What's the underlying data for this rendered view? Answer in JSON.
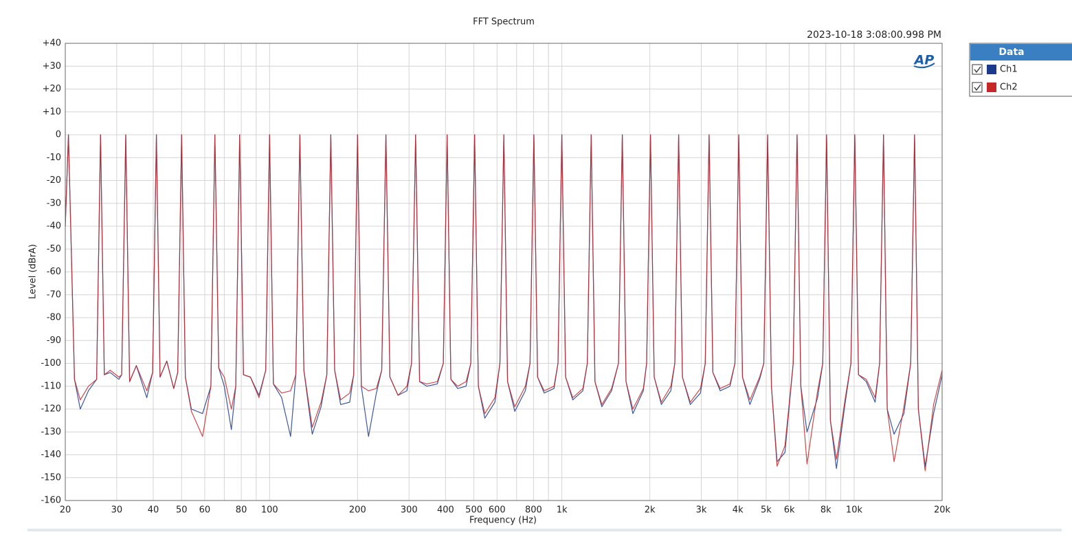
{
  "chart_data": {
    "type": "line",
    "title": "FFT Spectrum",
    "subtitle": "2023-10-18 3:08:00.998 PM",
    "logo": "AP",
    "legend_title": "Data",
    "xlabel": "Frequency (Hz)",
    "ylabel": "Level (dBrA)",
    "xscale": "log",
    "grid": true,
    "legend": "right",
    "xlim": [
      20,
      20000
    ],
    "ylim": [
      -160,
      40
    ],
    "xticks": [
      20,
      30,
      40,
      50,
      60,
      80,
      100,
      200,
      300,
      400,
      500,
      600,
      800,
      {
        "value": 1000,
        "label": "1k"
      },
      {
        "value": 2000,
        "label": "2k"
      },
      {
        "value": 3000,
        "label": "3k"
      },
      {
        "value": 4000,
        "label": "4k"
      },
      {
        "value": 5000,
        "label": "5k"
      },
      {
        "value": 6000,
        "label": "6k"
      },
      {
        "value": 8000,
        "label": "8k"
      },
      {
        "value": 10000,
        "label": "10k"
      },
      {
        "value": 20000,
        "label": "20k"
      }
    ],
    "xgrid_minor": [
      70,
      90,
      700,
      900,
      7000,
      9000
    ],
    "yticks": [
      {
        "value": 40,
        "label": "+40"
      },
      {
        "value": 30,
        "label": "+30"
      },
      {
        "value": 20,
        "label": "+20"
      },
      {
        "value": 10,
        "label": "+10"
      },
      0,
      -10,
      -20,
      -30,
      -40,
      -50,
      -60,
      -70,
      -80,
      -90,
      -100,
      -110,
      -120,
      -130,
      -140,
      -150,
      -160
    ],
    "x": [
      20,
      20.5,
      21.5,
      22.5,
      24,
      25.6,
      26.4,
      27.2,
      28.5,
      30.5,
      31.2,
      32.2,
      33.2,
      35,
      38,
      39.8,
      41,
      42.2,
      44.5,
      47,
      48.5,
      50,
      51.5,
      54,
      59,
      63,
      65,
      67,
      70,
      74,
      76.6,
      79,
      81.4,
      86,
      92,
      97,
      100,
      103,
      110,
      118,
      123,
      127,
      131,
      140,
      150,
      157,
      162,
      167,
      175,
      188,
      194,
      200,
      206,
      218,
      232,
      242,
      250,
      258,
      275,
      295,
      306,
      316,
      326,
      345,
      375,
      393,
      405,
      417,
      440,
      470,
      488,
      503,
      518,
      545,
      590,
      614,
      633,
      652,
      690,
      750,
      778,
      802,
      826,
      870,
      940,
      970,
      1000,
      1030,
      1090,
      1180,
      1222,
      1260,
      1298,
      1370,
      1480,
      1562,
      1610,
      1658,
      1750,
      1900,
      1950,
      2010,
      2070,
      2190,
      2360,
      2435,
      2510,
      2585,
      2750,
      2980,
      3094,
      3190,
      3286,
      3480,
      3760,
      3909,
      4030,
      4151,
      4400,
      4750,
      4908,
      5060,
      5212,
      5450,
      5800,
      6189,
      6380,
      6571,
      6900,
      7500,
      7809,
      8050,
      8292,
      8700,
      9300,
      9749,
      10050,
      10350,
      11000,
      11800,
      12220,
      12600,
      12980,
      13700,
      14800,
      15620,
      16100,
      16580,
      17500,
      18700,
      20000
    ],
    "series": [
      {
        "name": "Ch1",
        "color": "#1b3a8c",
        "values": [
          -40,
          0,
          -107,
          -120,
          -112,
          -107,
          0,
          -105,
          -104,
          -107,
          -105,
          0,
          -108,
          -101,
          -115,
          -104,
          0,
          -106,
          -99,
          -111,
          -104,
          0,
          -106,
          -120,
          -122,
          -110,
          0,
          -102,
          -110,
          -129,
          -110,
          0,
          -105,
          -106,
          -114,
          -103,
          0,
          -109,
          -115,
          -132,
          -105,
          0,
          -103,
          -131,
          -119,
          -105,
          0,
          -103,
          -118,
          -117,
          -105,
          0,
          -110,
          -132,
          -113,
          -103,
          0,
          -106,
          -114,
          -112,
          -100,
          0,
          -108,
          -110,
          -109,
          -100,
          0,
          -107,
          -111,
          -110,
          -100,
          0,
          -110,
          -124,
          -117,
          -100,
          0,
          -108,
          -121,
          -112,
          -100,
          0,
          -106,
          -113,
          -111,
          -100,
          0,
          -106,
          -116,
          -112,
          -100,
          0,
          -108,
          -119,
          -112,
          -100,
          0,
          -108,
          -122,
          -112,
          -100,
          0,
          -106,
          -118,
          -112,
          -100,
          0,
          -106,
          -118,
          -113,
          -100,
          0,
          -104,
          -112,
          -110,
          -100,
          0,
          -106,
          -118,
          -107,
          -100,
          0,
          -110,
          -143,
          -139,
          -100,
          0,
          -110,
          -130,
          -115,
          -100,
          0,
          -125,
          -146,
          -118,
          -100,
          0,
          -105,
          -108,
          -117,
          -100,
          0,
          -120,
          -131,
          -122,
          -100,
          0,
          -120,
          -145,
          -122,
          -105
        ]
      },
      {
        "name": "Ch2",
        "color": "#c62828",
        "values": [
          -40,
          0,
          -107,
          -116,
          -110,
          -107,
          0,
          -105,
          -103,
          -106,
          -105,
          0,
          -108,
          -101,
          -112,
          -104,
          0,
          -106,
          -99,
          -111,
          -104,
          0,
          -106,
          -121,
          -132,
          -110,
          0,
          -102,
          -106,
          -120,
          -110,
          0,
          -105,
          -106,
          -115,
          -103,
          0,
          -109,
          -113,
          -112,
          -105,
          0,
          -103,
          -128,
          -117,
          -105,
          0,
          -103,
          -116,
          -113,
          -105,
          0,
          -110,
          -112,
          -111,
          -103,
          0,
          -106,
          -114,
          -110,
          -100,
          0,
          -108,
          -109,
          -108,
          -100,
          0,
          -107,
          -110,
          -108,
          -100,
          0,
          -110,
          -122,
          -115,
          -100,
          0,
          -108,
          -119,
          -110,
          -100,
          0,
          -106,
          -112,
          -110,
          -100,
          0,
          -106,
          -115,
          -111,
          -100,
          0,
          -108,
          -118,
          -111,
          -100,
          0,
          -108,
          -120,
          -111,
          -100,
          0,
          -106,
          -117,
          -110,
          -100,
          0,
          -106,
          -117,
          -111,
          -100,
          0,
          -104,
          -111,
          -109,
          -100,
          0,
          -106,
          -116,
          -106,
          -100,
          0,
          -110,
          -145,
          -136,
          -100,
          0,
          -110,
          -144,
          -112,
          -100,
          0,
          -125,
          -142,
          -116,
          -100,
          0,
          -105,
          -107,
          -115,
          -100,
          0,
          -120,
          -143,
          -119,
          -100,
          0,
          -120,
          -147,
          -118,
          -103
        ]
      }
    ]
  }
}
